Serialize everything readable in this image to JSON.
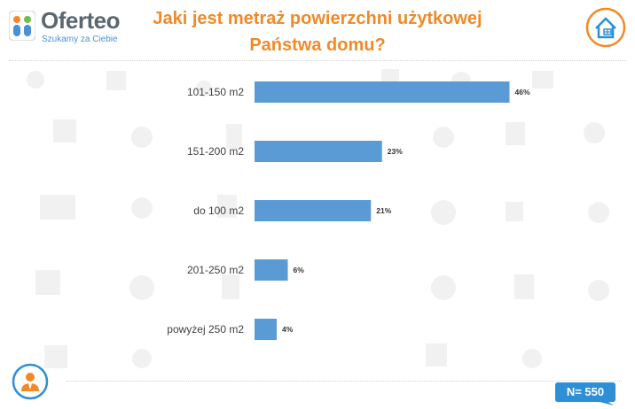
{
  "brand": {
    "name": "Oferteo",
    "tagline": "Szukamy za Ciebie"
  },
  "title_lines": [
    "Jaki jest metraż powierzchni użytkowej",
    "Państwa domu?"
  ],
  "sample": "N= 550",
  "colors": {
    "bar": "#5b9bd5",
    "title": "#f08a28",
    "badge": "#2d8fd5",
    "label": "#404040"
  },
  "icons": {
    "logo": "oferteo-logo-icon",
    "house": "house-icon",
    "person": "person-icon"
  },
  "chart_data": {
    "type": "bar",
    "orientation": "horizontal",
    "title": "Jaki jest metraż powierzchni użytkowej Państwa domu?",
    "categories": [
      "101-150 m2",
      "151-200 m2",
      "do 100 m2",
      "201-250 m2",
      "powyżej 250 m2"
    ],
    "values": [
      46,
      23,
      21,
      6,
      4
    ],
    "value_labels": [
      "46%",
      "23%",
      "21%",
      "6%",
      "4%"
    ],
    "unit": "%",
    "xlim": [
      0,
      100
    ],
    "grid": false,
    "legend": "none"
  }
}
